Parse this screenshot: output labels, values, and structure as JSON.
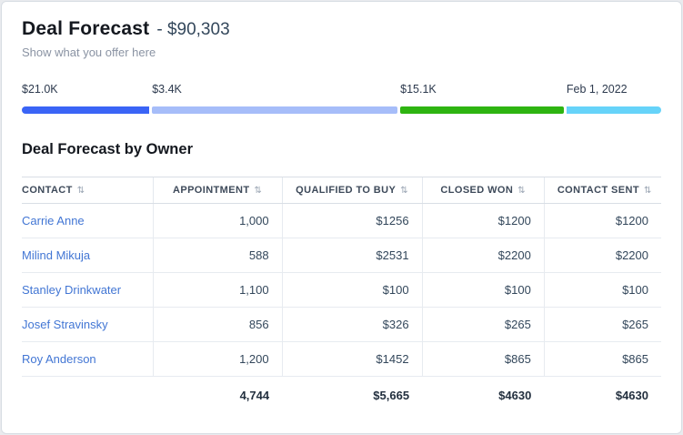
{
  "header": {
    "title": "Deal Forecast",
    "amount": "- $90,303",
    "subtitle": "Show what you offer here"
  },
  "forecast_bar": {
    "labels": [
      {
        "text": "$21.0K",
        "style": "flex:20.2 1 0"
      },
      {
        "text": "$3.4K",
        "style": "flex:38.9 1 0"
      },
      {
        "text": "$15.1K",
        "style": "flex:25.9 1 0"
      },
      {
        "text": "Feb 1, 2022",
        "style": "flex:15.0 1 0"
      }
    ],
    "segments": [
      {
        "label": "$21.0K",
        "color": "#3a64f6",
        "style": "flex:20.2 1 0;background:#3a64f6"
      },
      {
        "label": "$3.4K",
        "color": "#a6bdf9",
        "style": "flex:38.9 1 0;background:#a6bdf9"
      },
      {
        "label": "$15.1K",
        "color": "#2eb411",
        "style": "flex:25.9 1 0;background:#2eb411"
      },
      {
        "label": "Feb 1, 2022",
        "color": "#66d3f9",
        "style": "flex:15.0 1 0;background:#66d3f9"
      }
    ]
  },
  "section": {
    "title": "Deal Forecast by Owner"
  },
  "icons": {
    "sort": "⇅"
  },
  "table": {
    "headers": [
      {
        "label": "CONTACT"
      },
      {
        "label": "APPOINTMENT"
      },
      {
        "label": "QUALIFIED TO BUY"
      },
      {
        "label": "CLOSED WON"
      },
      {
        "label": "CONTACT SENT"
      }
    ],
    "rows": [
      {
        "contact": "Carrie Anne",
        "appointment": "1,000",
        "qualified": "$1256",
        "closed_won": "$1200",
        "contact_sent": "$1200"
      },
      {
        "contact": "Milind Mikuja",
        "appointment": "588",
        "qualified": "$2531",
        "closed_won": "$2200",
        "contact_sent": "$2200"
      },
      {
        "contact": "Stanley Drinkwater",
        "appointment": "1,100",
        "qualified": "$100",
        "closed_won": "$100",
        "contact_sent": "$100"
      },
      {
        "contact": "Josef Stravinsky",
        "appointment": "856",
        "qualified": "$326",
        "closed_won": "$265",
        "contact_sent": "$265"
      },
      {
        "contact": "Roy Anderson",
        "appointment": "1,200",
        "qualified": "$1452",
        "closed_won": "$865",
        "contact_sent": "$865"
      }
    ],
    "totals": {
      "appointment": "4,744",
      "qualified": "$5,665",
      "closed_won": "$4630",
      "contact_sent": "$4630"
    }
  }
}
